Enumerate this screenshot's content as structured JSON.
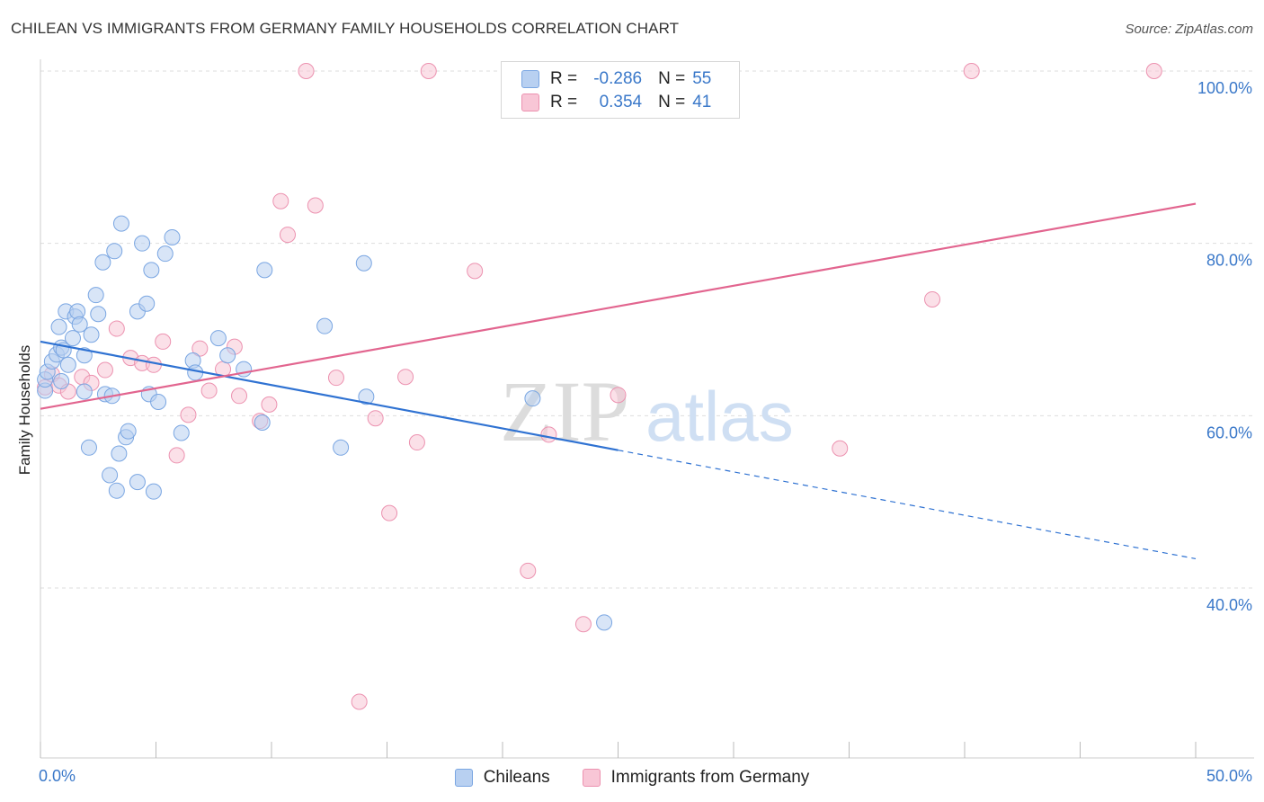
{
  "header": {
    "title": "CHILEAN VS IMMIGRANTS FROM GERMANY FAMILY HOUSEHOLDS CORRELATION CHART",
    "source": "Source: ZipAtlas.com"
  },
  "watermark": {
    "zip": "ZIP",
    "atlas": "atlas"
  },
  "legend_top": {
    "rows": [
      {
        "r_label": "R =",
        "r_value": "-0.286",
        "n_label": "N =",
        "n_value": "55"
      },
      {
        "r_label": "R =",
        "r_value": "0.354",
        "n_label": "N =",
        "n_value": "41"
      }
    ]
  },
  "legend_bottom": {
    "items": [
      "Chileans",
      "Immigrants from Germany"
    ]
  },
  "colors": {
    "blue_fill": "#b8d0f1",
    "blue_stroke": "#7aa6e2",
    "blue_line": "#2f72d2",
    "pink_fill": "#f8c6d6",
    "pink_stroke": "#ec92b0",
    "pink_line": "#e2658f",
    "tick_label": "#3a78c9",
    "grid": "#dddddd"
  },
  "chart_data": {
    "type": "scatter",
    "title": "CHILEAN VS IMMIGRANTS FROM GERMANY FAMILY HOUSEHOLDS CORRELATION CHART",
    "xlabel": "",
    "ylabel": "Family Households",
    "xlim": [
      0,
      50
    ],
    "ylim": [
      20,
      104
    ],
    "x_tick_labels": [
      "0.0%",
      "50.0%"
    ],
    "y_ticks": [
      40,
      60,
      80,
      100
    ],
    "y_tick_labels": [
      "40.0%",
      "60.0%",
      "80.0%",
      "100.0%"
    ],
    "grid": true,
    "legend_position": "top-center",
    "series": [
      {
        "name": "Chileans",
        "r": -0.286,
        "n": 55,
        "trend": {
          "x": [
            0,
            25,
            50
          ],
          "y": [
            68.6,
            55.8,
            43.4
          ],
          "solid_until": 25
        },
        "points": [
          [
            0.2,
            62.9
          ],
          [
            0.2,
            64.2
          ],
          [
            0.3,
            65.1
          ],
          [
            0.5,
            66.3
          ],
          [
            0.7,
            67.1
          ],
          [
            0.8,
            70.3
          ],
          [
            0.9,
            67.9
          ],
          [
            1.0,
            67.6
          ],
          [
            1.1,
            72.1
          ],
          [
            1.2,
            65.9
          ],
          [
            1.4,
            69.0
          ],
          [
            1.5,
            71.5
          ],
          [
            1.6,
            72.1
          ],
          [
            1.7,
            70.6
          ],
          [
            1.9,
            67.0
          ],
          [
            1.9,
            62.8
          ],
          [
            2.1,
            56.3
          ],
          [
            2.2,
            69.4
          ],
          [
            2.4,
            74.0
          ],
          [
            2.5,
            71.8
          ],
          [
            2.7,
            77.8
          ],
          [
            2.8,
            62.5
          ],
          [
            3.0,
            53.1
          ],
          [
            3.1,
            62.3
          ],
          [
            3.2,
            79.1
          ],
          [
            3.3,
            51.3
          ],
          [
            3.4,
            55.6
          ],
          [
            3.5,
            82.3
          ],
          [
            3.7,
            57.5
          ],
          [
            3.8,
            58.2
          ],
          [
            4.2,
            72.1
          ],
          [
            4.2,
            52.3
          ],
          [
            4.4,
            80.0
          ],
          [
            4.6,
            73.0
          ],
          [
            4.7,
            62.5
          ],
          [
            4.8,
            76.9
          ],
          [
            4.9,
            51.2
          ],
          [
            5.1,
            61.6
          ],
          [
            5.4,
            78.8
          ],
          [
            5.7,
            80.7
          ],
          [
            6.1,
            58.0
          ],
          [
            6.6,
            66.4
          ],
          [
            6.7,
            65.0
          ],
          [
            7.7,
            69.0
          ],
          [
            8.1,
            67.0
          ],
          [
            8.8,
            65.4
          ],
          [
            9.6,
            59.2
          ],
          [
            9.7,
            76.9
          ],
          [
            12.3,
            70.4
          ],
          [
            13.0,
            56.3
          ],
          [
            14.0,
            77.7
          ],
          [
            14.1,
            62.2
          ],
          [
            21.3,
            62.0
          ],
          [
            24.4,
            36.0
          ],
          [
            0.9,
            64.0
          ]
        ]
      },
      {
        "name": "Immigrants from Germany",
        "r": 0.354,
        "n": 41,
        "trend": {
          "x": [
            0,
            50
          ],
          "y": [
            60.8,
            84.6
          ]
        },
        "points": [
          [
            0.2,
            63.3
          ],
          [
            0.5,
            64.8
          ],
          [
            0.8,
            63.5
          ],
          [
            1.2,
            62.8
          ],
          [
            1.8,
            64.5
          ],
          [
            2.2,
            63.8
          ],
          [
            2.8,
            65.3
          ],
          [
            3.3,
            70.1
          ],
          [
            3.9,
            66.7
          ],
          [
            4.4,
            66.1
          ],
          [
            4.9,
            65.9
          ],
          [
            5.3,
            68.6
          ],
          [
            5.9,
            55.4
          ],
          [
            6.4,
            60.1
          ],
          [
            6.9,
            67.8
          ],
          [
            7.3,
            62.9
          ],
          [
            7.9,
            65.4
          ],
          [
            8.4,
            68.0
          ],
          [
            8.6,
            62.3
          ],
          [
            9.5,
            59.4
          ],
          [
            9.9,
            61.3
          ],
          [
            10.4,
            84.9
          ],
          [
            10.7,
            81.0
          ],
          [
            11.5,
            100.0
          ],
          [
            11.9,
            84.4
          ],
          [
            12.8,
            64.4
          ],
          [
            13.8,
            26.8
          ],
          [
            14.5,
            59.7
          ],
          [
            15.1,
            48.7
          ],
          [
            15.8,
            64.5
          ],
          [
            16.3,
            56.9
          ],
          [
            16.8,
            100.0
          ],
          [
            18.8,
            76.8
          ],
          [
            21.1,
            42.0
          ],
          [
            22.0,
            57.8
          ],
          [
            23.5,
            35.8
          ],
          [
            25.0,
            62.4
          ],
          [
            34.6,
            56.2
          ],
          [
            38.6,
            73.5
          ],
          [
            40.3,
            100.0
          ],
          [
            48.2,
            100.0
          ]
        ]
      }
    ]
  }
}
